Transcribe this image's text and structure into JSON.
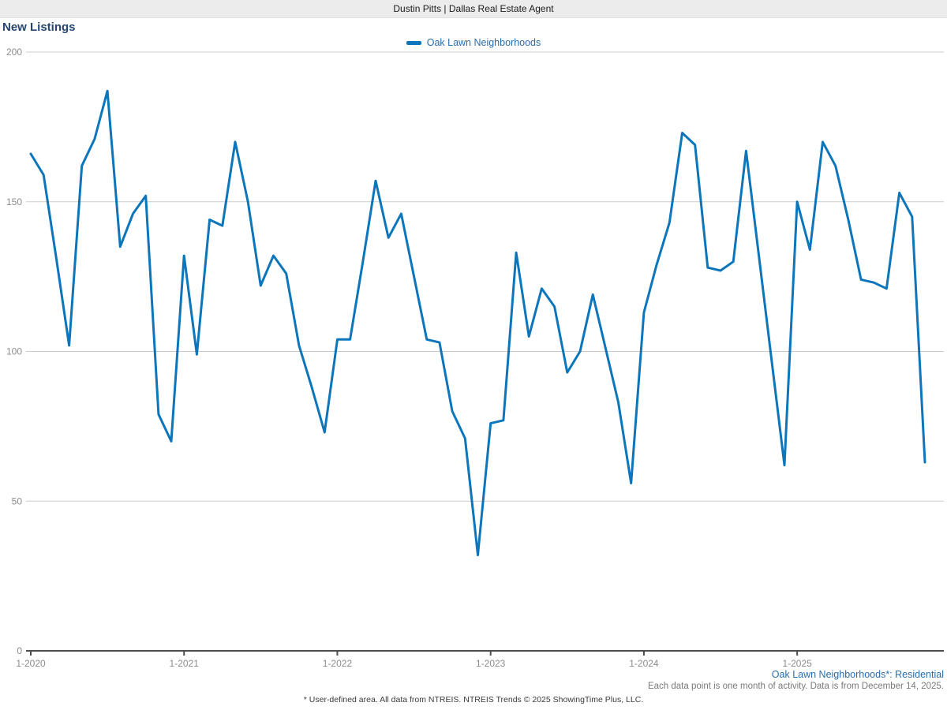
{
  "header": {
    "title": "Dustin Pitts | Dallas Real Estate Agent"
  },
  "page_title": "New Listings",
  "legend": {
    "label": "Oak Lawn Neighborhoods"
  },
  "footnotes": {
    "series_note": "Oak Lawn Neighborhoods*: Residential",
    "data_note": "Each data point is one month of activity. Data is from December 14, 2025.",
    "disclaimer": "* User-defined area. All data from NTREIS. NTREIS Trends © 2025 ShowingTime Plus, LLC."
  },
  "colors": {
    "series_line": "#0d76bb",
    "accent_text": "#2a6dad",
    "title_text": "#26466d",
    "grid_line": "#cbcbcb",
    "axis_line": "#4d4d4d",
    "tick_text": "#8c8c8c",
    "header_bg": "#ececec"
  },
  "chart_data": {
    "type": "line",
    "title": "New Listings",
    "xlabel": "",
    "ylabel": "",
    "ylim": [
      0,
      200
    ],
    "y_ticks": [
      0,
      50,
      100,
      150,
      200
    ],
    "grid": "horizontal",
    "legend_position": "top-center",
    "start_month": "1-2020",
    "end_month": "11-2025",
    "months_per_point": 1,
    "x_tick_labels": [
      "1-2020",
      "1-2021",
      "1-2022",
      "1-2023",
      "1-2024",
      "1-2025"
    ],
    "x_tick_indices": [
      0,
      12,
      24,
      36,
      48,
      60
    ],
    "series": [
      {
        "name": "Oak Lawn Neighborhoods",
        "values": [
          166,
          159,
          131,
          102,
          162,
          171,
          187,
          135,
          146,
          152,
          79,
          70,
          132,
          99,
          144,
          142,
          170,
          150,
          122,
          132,
          126,
          102,
          88,
          73,
          104,
          104,
          130,
          157,
          138,
          146,
          125,
          104,
          103,
          80,
          71,
          32,
          76,
          77,
          133,
          105,
          121,
          115,
          93,
          100,
          119,
          101,
          83,
          56,
          113,
          129,
          143,
          173,
          169,
          128,
          127,
          130,
          167,
          132,
          97,
          62,
          150,
          134,
          170,
          162,
          144,
          124,
          123,
          121,
          153,
          145,
          63
        ]
      }
    ]
  }
}
